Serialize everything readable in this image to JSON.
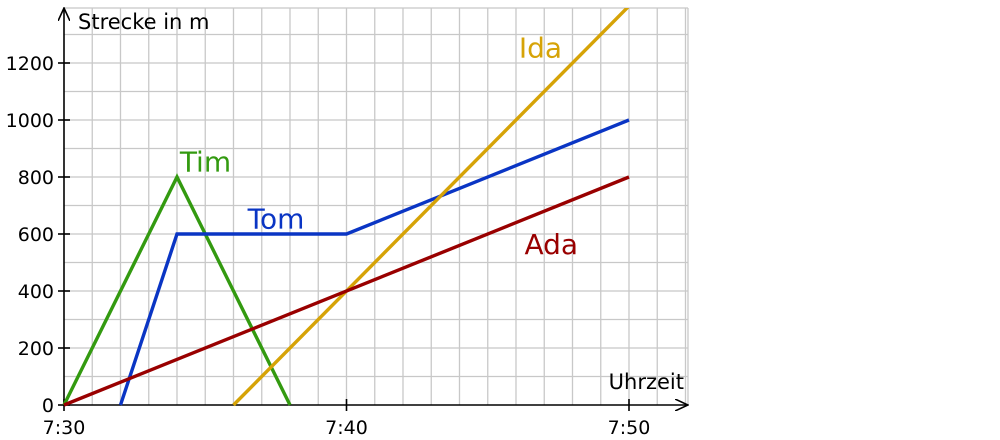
{
  "chart_data": {
    "type": "line",
    "title": "",
    "xlabel": "Uhrzeit",
    "ylabel": "Strecke in m",
    "x_unit": "minutes after 7:30",
    "xlim": [
      0,
      22
    ],
    "ylim": [
      0,
      1400
    ],
    "grid": true,
    "x_ticks": [
      {
        "value": 0,
        "label": "7:30"
      },
      {
        "value": 10,
        "label": "7:40"
      },
      {
        "value": 20,
        "label": "7:50"
      }
    ],
    "y_ticks": [
      {
        "value": 0,
        "label": "0"
      },
      {
        "value": 200,
        "label": "200"
      },
      {
        "value": 400,
        "label": "400"
      },
      {
        "value": 600,
        "label": "600"
      },
      {
        "value": 800,
        "label": "800"
      },
      {
        "value": 1000,
        "label": "1000"
      },
      {
        "value": 1200,
        "label": "1200"
      }
    ],
    "series": [
      {
        "name": "Tim",
        "color": "#339a10",
        "label_at": [
          4.1,
          820
        ],
        "points": [
          [
            0,
            0
          ],
          [
            4,
            800
          ],
          [
            8,
            0
          ]
        ]
      },
      {
        "name": "Tom",
        "color": "#0a35c4",
        "label_at": [
          6.5,
          620
        ],
        "points": [
          [
            2,
            0
          ],
          [
            4,
            600
          ],
          [
            10,
            600
          ],
          [
            20,
            1000
          ]
        ]
      },
      {
        "name": "Ida",
        "color": "#d6a307",
        "label_at": [
          16.1,
          1220
        ],
        "points": [
          [
            6,
            0
          ],
          [
            20,
            1400
          ]
        ]
      },
      {
        "name": "Ada",
        "color": "#990000",
        "label_at": [
          16.3,
          530
        ],
        "points": [
          [
            0,
            0
          ],
          [
            20,
            800
          ]
        ]
      }
    ]
  }
}
